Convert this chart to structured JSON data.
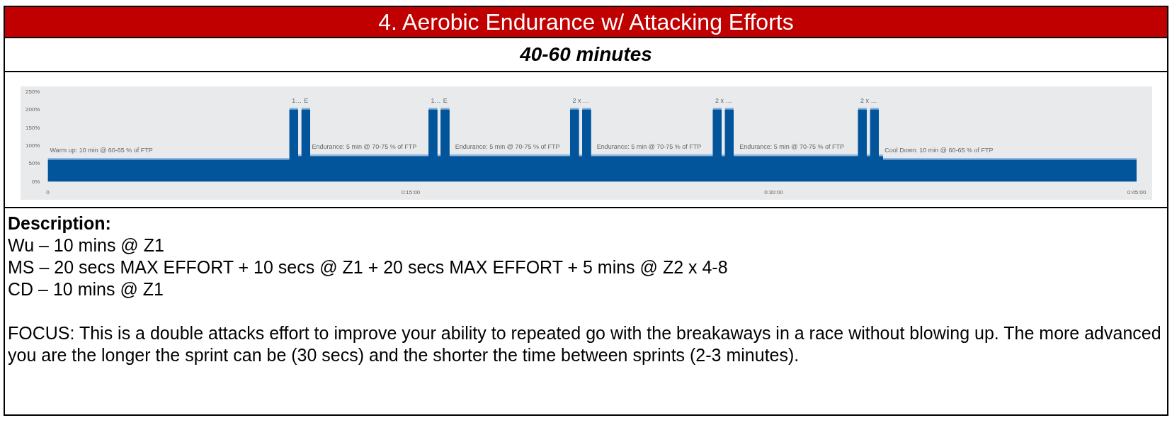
{
  "chart_data": {
    "type": "area",
    "title": "4.  Aerobic Endurance w/ Attacking Efforts",
    "subtitle": "40-60 minutes",
    "xlim": [
      0,
      45
    ],
    "xticks": [
      0,
      {
        "value": 15,
        "label": "0:15:00"
      },
      {
        "value": 30,
        "label": "0:30:00"
      },
      {
        "value": 45,
        "label": "0:45:00"
      }
    ],
    "ylim": [
      0,
      250
    ],
    "yticks": [
      {
        "value": 0,
        "label": "0%"
      },
      {
        "value": 50,
        "label": "50%"
      },
      {
        "value": 100,
        "label": "100%"
      },
      {
        "value": 150,
        "label": "150%"
      },
      {
        "value": 200,
        "label": "200%"
      },
      {
        "value": 250,
        "label": "250%"
      }
    ],
    "series": [
      {
        "color": "#8fb6de",
        "x": [
          0,
          10,
          10,
          10.33,
          10.33,
          10.5,
          10.5,
          10.83,
          10.83,
          15.75,
          15.75,
          16.08,
          16.08,
          16.25,
          16.25,
          16.58,
          16.58,
          21.6,
          21.6,
          21.93,
          21.93,
          22.1,
          22.1,
          22.43,
          22.43,
          27.5,
          27.5,
          27.83,
          27.83,
          28,
          28,
          28.33,
          28.33,
          33.5,
          33.5,
          33.83,
          33.83,
          34,
          34,
          34.33,
          34.33,
          34.5,
          34.5,
          45
        ],
        "values": [
          65,
          65,
          205,
          205,
          75,
          75,
          205,
          205,
          75,
          75,
          205,
          205,
          75,
          75,
          205,
          205,
          75,
          75,
          205,
          205,
          75,
          75,
          205,
          205,
          75,
          75,
          205,
          205,
          75,
          75,
          205,
          205,
          75,
          75,
          205,
          205,
          75,
          75,
          205,
          205,
          75,
          75,
          65,
          65
        ]
      },
      {
        "color": "#02559b",
        "x": [
          0,
          10,
          10,
          10.33,
          10.33,
          10.5,
          10.5,
          10.83,
          10.83,
          15.75,
          15.75,
          16.08,
          16.08,
          16.25,
          16.25,
          16.58,
          16.58,
          21.6,
          21.6,
          21.93,
          21.93,
          22.1,
          22.1,
          22.43,
          22.43,
          27.5,
          27.5,
          27.83,
          27.83,
          28,
          28,
          28.33,
          28.33,
          33.5,
          33.5,
          33.83,
          33.83,
          34,
          34,
          34.33,
          34.33,
          34.5,
          34.5,
          45
        ],
        "values": [
          60,
          60,
          200,
          200,
          70,
          70,
          200,
          200,
          70,
          70,
          200,
          200,
          70,
          70,
          200,
          200,
          70,
          70,
          200,
          200,
          70,
          70,
          200,
          200,
          70,
          70,
          200,
          200,
          70,
          70,
          200,
          200,
          70,
          70,
          200,
          200,
          70,
          70,
          200,
          200,
          70,
          70,
          60,
          60
        ]
      }
    ],
    "annotations": [
      {
        "text": "Warm up: 10 min @ 60-65 % of FTP",
        "x": 0,
        "y": 65
      },
      {
        "text": "1…",
        "x": 10,
        "y": 205
      },
      {
        "text": "E",
        "x": 10.5,
        "y": 205
      },
      {
        "text": "Endurance: 5 min @ 70-75 % of FTP",
        "x": 10.83,
        "y": 75
      },
      {
        "text": "1…",
        "x": 15.75,
        "y": 205
      },
      {
        "text": "E",
        "x": 16.25,
        "y": 205
      },
      {
        "text": "Endurance: 5 min @ 70-75 % of FTP",
        "x": 16.75,
        "y": 75
      },
      {
        "text": "2 x …",
        "x": 21.6,
        "y": 205
      },
      {
        "text": "Endurance: 5 min @ 70-75 % of FTP",
        "x": 22.6,
        "y": 75
      },
      {
        "text": "2 x …",
        "x": 27.5,
        "y": 205
      },
      {
        "text": "Endurance: 5 min @ 70-75 % of FTP",
        "x": 28.5,
        "y": 75
      },
      {
        "text": "2 x …",
        "x": 33.5,
        "y": 205
      },
      {
        "text": "Cool Down: 10 min @ 60-65 % of FTP",
        "x": 34.5,
        "y": 65
      },
      "Description:",
      "Wu – 10 mins @ Z1",
      "MS – 20 secs MAX EFFORT + 10 secs @ Z1 + 20 secs MAX EFFORT + 5 mins @ Z2 x 4-8",
      "CD – 10 mins @ Z1",
      "FOCUS: This is a double attacks effort to improve your ability to repeated go with the breakaways in a race without blowing up. The more advanced you are the longer the sprint can be (30 secs) and the shorter the time between sprints (2-3 minutes)."
    ]
  }
}
